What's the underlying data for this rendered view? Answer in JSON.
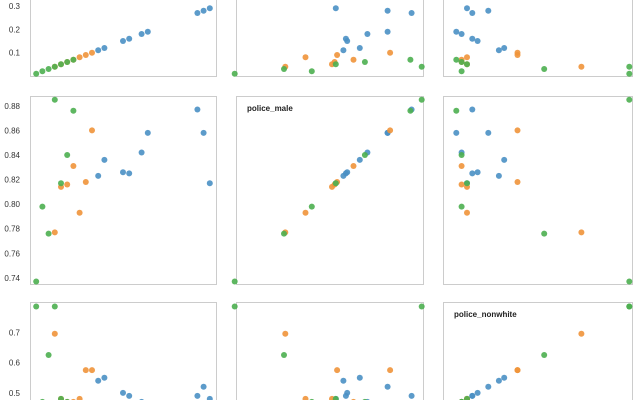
{
  "chart_data": {
    "type": "scatter",
    "kind": "scatter-matrix",
    "variables": [
      "",
      "police_male",
      "police_nonwhite"
    ],
    "colors": {
      "c1": "#4a90c4",
      "c2": "#f0933a",
      "c3": "#4caf50"
    },
    "grid": false,
    "legend": "none",
    "axes": {
      "row0": {
        "ylim": [
          0.0,
          0.36
        ],
        "ticks": [
          "0.1",
          "0.2",
          "0.3"
        ],
        "tick_values": [
          0.1,
          0.2,
          0.3
        ]
      },
      "row1": {
        "ylim": [
          0.735,
          0.888
        ],
        "ticks": [
          "0.74",
          "0.76",
          "0.78",
          "0.80",
          "0.82",
          "0.84",
          "0.86",
          "0.88"
        ],
        "tick_values": [
          0.74,
          0.76,
          0.78,
          0.8,
          0.82,
          0.84,
          0.86,
          0.88
        ]
      },
      "row2": {
        "ylim": [
          0.45,
          0.8
        ],
        "ticks": [
          "0.5",
          "0.6",
          "0.7"
        ],
        "tick_values": [
          0.5,
          0.6,
          0.7
        ]
      },
      "col0": {
        "xlim": [
          0.0,
          0.3
        ]
      },
      "col1": {
        "xlim": [
          0.738,
          0.886
        ]
      },
      "col2": {
        "xlim": [
          0.435,
          0.79
        ]
      }
    },
    "series": [
      {
        "color_key": "c1",
        "points": [
          {
            "a": 0.16,
            "b": 0.825,
            "c": 0.49
          },
          {
            "a": 0.18,
            "b": 0.842,
            "c": 0.47
          },
          {
            "a": 0.12,
            "b": 0.836,
            "c": 0.55
          },
          {
            "a": 0.19,
            "b": 0.858,
            "c": 0.46
          },
          {
            "a": 0.27,
            "b": 0.877,
            "c": 0.49
          },
          {
            "a": 0.29,
            "b": 0.817,
            "c": 0.48
          },
          {
            "a": 0.28,
            "b": 0.858,
            "c": 0.52
          },
          {
            "a": 0.15,
            "b": 0.826,
            "c": 0.5
          },
          {
            "a": 0.11,
            "b": 0.823,
            "c": 0.54
          }
        ]
      },
      {
        "color_key": "c2",
        "points": [
          {
            "a": 0.04,
            "b": 0.777,
            "c": 0.695
          },
          {
            "a": 0.08,
            "b": 0.793,
            "c": 0.48
          },
          {
            "a": 0.1,
            "b": 0.86,
            "c": 0.575
          },
          {
            "a": 0.07,
            "b": 0.831,
            "c": 0.47
          },
          {
            "a": 0.09,
            "b": 0.818,
            "c": 0.575
          },
          {
            "a": 0.06,
            "b": 0.816,
            "c": 0.47
          },
          {
            "a": 0.05,
            "b": 0.814,
            "c": 0.48
          }
        ]
      },
      {
        "color_key": "c3",
        "points": [
          {
            "a": 0.01,
            "b": 0.737,
            "c": 0.785
          },
          {
            "a": 0.03,
            "b": 0.776,
            "c": 0.625
          },
          {
            "a": 0.02,
            "b": 0.798,
            "c": 0.47
          },
          {
            "a": 0.05,
            "b": 0.817,
            "c": 0.48
          },
          {
            "a": 0.06,
            "b": 0.84,
            "c": 0.47
          },
          {
            "a": 0.07,
            "b": 0.876,
            "c": 0.46
          },
          {
            "a": 0.04,
            "b": 0.885,
            "c": 0.785
          }
        ]
      }
    ]
  }
}
